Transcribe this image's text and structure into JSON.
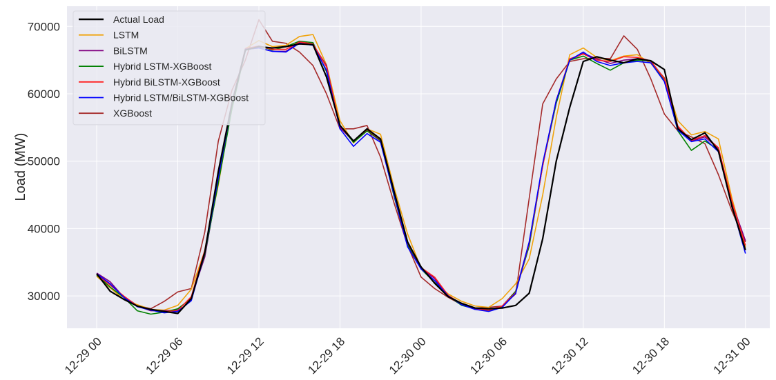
{
  "chart_data": {
    "type": "line",
    "title": "",
    "xlabel": "",
    "ylabel": "Load (MW)",
    "x_ticks": [
      "12-29 00",
      "12-29 06",
      "12-29 12",
      "12-29 18",
      "12-30 00",
      "12-30 06",
      "12-30 12",
      "12-30 18",
      "12-31 00"
    ],
    "x_range_hours": [
      -2.2,
      49.8
    ],
    "y_ticks": [
      30000,
      40000,
      50000,
      60000,
      70000
    ],
    "ylim": [
      25200,
      73000
    ],
    "grid": true,
    "legend_position": "top-left",
    "series": [
      {
        "name": "Actual Load",
        "color": "#000000",
        "values": [
          33300,
          30700,
          29500,
          28500,
          28000,
          27700,
          27400,
          29600,
          36500,
          48500,
          58500,
          66500,
          67000,
          66800,
          67000,
          67400,
          67300,
          62500,
          55300,
          53000,
          54800,
          53300,
          45500,
          38000,
          34300,
          31900,
          29900,
          28900,
          28200,
          28100,
          28200,
          28600,
          30400,
          38500,
          50000,
          58000,
          64800,
          65500,
          65000,
          64600,
          65200,
          64900,
          63600,
          54800,
          53200,
          54200,
          51500,
          43300,
          36800
        ]
      },
      {
        "name": "LSTM",
        "color": "#f0a30a",
        "values": [
          32900,
          31200,
          29500,
          28700,
          28000,
          27900,
          28600,
          31000,
          36700,
          46500,
          58200,
          66700,
          67900,
          67000,
          67200,
          68500,
          68800,
          64300,
          56000,
          52700,
          54800,
          54000,
          46100,
          39200,
          34100,
          32000,
          30300,
          29200,
          28500,
          28300,
          29600,
          31800,
          35500,
          45000,
          56500,
          65800,
          66800,
          65400,
          64900,
          65600,
          65800,
          64500,
          62400,
          56000,
          53900,
          54400,
          53300,
          44500,
          37200
        ]
      },
      {
        "name": "BiLSTM",
        "color": "#800080",
        "values": [
          33400,
          32100,
          29800,
          28500,
          27800,
          27800,
          27900,
          29800,
          35800,
          47200,
          58400,
          66600,
          66800,
          66300,
          66300,
          67600,
          67300,
          64200,
          55000,
          52900,
          54500,
          53000,
          45200,
          37600,
          34100,
          32600,
          29900,
          28800,
          28000,
          27800,
          28500,
          30700,
          38000,
          49500,
          59000,
          65000,
          66000,
          65200,
          64500,
          65000,
          65200,
          64800,
          62300,
          55000,
          53000,
          53600,
          51900,
          43800,
          38200
        ]
      },
      {
        "name": "Hybrid LSTM-XGBoost",
        "color": "#008000",
        "values": [
          33100,
          31300,
          29800,
          27800,
          27300,
          27600,
          28100,
          29600,
          36200,
          46800,
          57700,
          66500,
          67100,
          66500,
          67000,
          67800,
          67600,
          63300,
          55300,
          52800,
          54500,
          53100,
          44800,
          37500,
          34000,
          32000,
          30000,
          28600,
          28100,
          27900,
          28400,
          30700,
          37400,
          49400,
          58600,
          65000,
          65600,
          64500,
          63500,
          64600,
          65000,
          64900,
          62000,
          54500,
          51600,
          53000,
          51700,
          43200,
          36800
        ]
      },
      {
        "name": "Hybrid BiLSTM-XGBoost",
        "color": "#ff2020",
        "values": [
          33200,
          31600,
          30000,
          28500,
          27900,
          27700,
          27800,
          29900,
          36800,
          47600,
          58600,
          66700,
          67100,
          66600,
          66600,
          67700,
          67400,
          64000,
          55200,
          53000,
          54700,
          53200,
          45300,
          37900,
          34200,
          32800,
          30100,
          28800,
          28100,
          27900,
          28500,
          30500,
          37800,
          49300,
          59000,
          65200,
          65900,
          65000,
          64800,
          65500,
          65400,
          64900,
          62200,
          55200,
          53100,
          53800,
          52000,
          44000,
          37500
        ]
      },
      {
        "name": "Hybrid LSTM/BiLSTM-XGBoost",
        "color": "#0000ff",
        "values": [
          33300,
          31800,
          29800,
          28400,
          27900,
          27500,
          27700,
          29300,
          36400,
          47600,
          58500,
          66600,
          66800,
          66300,
          66200,
          67500,
          67200,
          63500,
          54800,
          52200,
          54100,
          52800,
          45000,
          37300,
          34000,
          32300,
          30000,
          28700,
          28000,
          27700,
          28300,
          30400,
          38000,
          49700,
          59000,
          65000,
          66200,
          64800,
          64200,
          64600,
          64800,
          64600,
          61800,
          54600,
          52900,
          53300,
          51400,
          43400,
          36300
        ]
      },
      {
        "name": "XGBoost",
        "color": "#a52a2a",
        "values": [
          33000,
          31700,
          29900,
          28600,
          28100,
          29200,
          30600,
          31100,
          39500,
          53000,
          60500,
          65000,
          71000,
          67800,
          67500,
          66200,
          64200,
          60000,
          54800,
          54800,
          55300,
          50600,
          43800,
          37500,
          32800,
          31100,
          29800,
          28700,
          28200,
          28300,
          28500,
          30300,
          44500,
          58500,
          62200,
          64800,
          65200,
          65300,
          65200,
          68600,
          66600,
          62200,
          57000,
          54500,
          53600,
          52600,
          48000,
          42600,
          38000
        ]
      }
    ]
  }
}
